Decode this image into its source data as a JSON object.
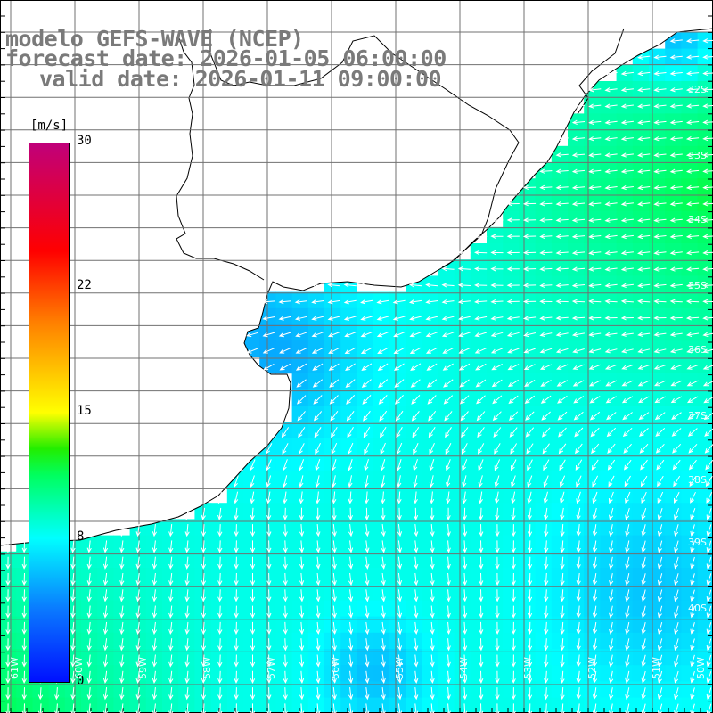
{
  "title": {
    "model": "modelo GEFS-WAVE (NCEP)",
    "forecast": "forecast date: 2026-01-05 06:00:00",
    "valid": "valid date: 2026-01-11 09:00:00"
  },
  "colorbar": {
    "unit": "[m/s]",
    "ticks": [
      {
        "value": 30,
        "label": "30"
      },
      {
        "value": 22,
        "label": "22"
      },
      {
        "value": 15,
        "label": "15"
      },
      {
        "value": 8,
        "label": "8"
      },
      {
        "value": 0,
        "label": "0"
      }
    ],
    "range": [
      0,
      30
    ],
    "stops": [
      {
        "v": 0,
        "color": "#0010ff"
      },
      {
        "v": 4,
        "color": "#0a78ff"
      },
      {
        "v": 8,
        "color": "#00ffff"
      },
      {
        "v": 11.5,
        "color": "#00ff60"
      },
      {
        "v": 13,
        "color": "#22ee00"
      },
      {
        "v": 15,
        "color": "#ffff00"
      },
      {
        "v": 20,
        "color": "#ff8000"
      },
      {
        "v": 24,
        "color": "#ff0000"
      },
      {
        "v": 30,
        "color": "#c0007a"
      }
    ]
  },
  "map": {
    "lat_labels": [
      "32S",
      "33S",
      "34S",
      "35S",
      "36S",
      "37S",
      "38S",
      "39S",
      "40S"
    ],
    "lon_labels": [
      "61W",
      "60W",
      "59W",
      "58W",
      "57W",
      "56W",
      "55W",
      "54W",
      "53W",
      "52W",
      "51W",
      "50W"
    ],
    "colors": {
      "land": "#ffffff",
      "coast": "#000000",
      "grid": "#707070",
      "arrows": "#ffffff"
    }
  }
}
